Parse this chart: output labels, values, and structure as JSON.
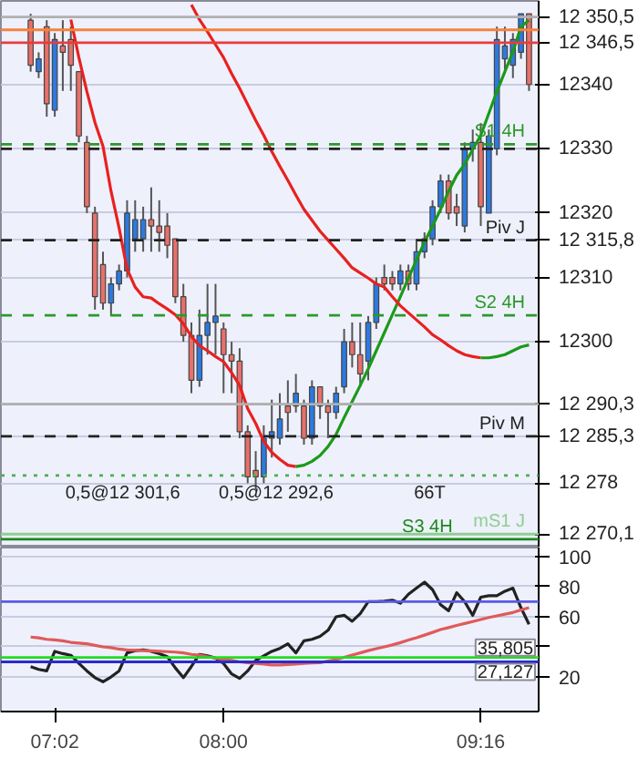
{
  "chart_data": [
    {
      "type": "candlestick",
      "categories": [
        null,
        null,
        null,
        null,
        null,
        null,
        null,
        null,
        null,
        null,
        null,
        null,
        null,
        null,
        null,
        null,
        null,
        null,
        null,
        null,
        null,
        null,
        null,
        null,
        null,
        null,
        null,
        null,
        null,
        null,
        null,
        null,
        null,
        null,
        null,
        null,
        null,
        null,
        null,
        null,
        null,
        null,
        null,
        null,
        null,
        null,
        null,
        null,
        null,
        null,
        null,
        null,
        null,
        null,
        null,
        null,
        null,
        null,
        null,
        null,
        null,
        null,
        null
      ],
      "ohlc": [
        [
          12350,
          12351,
          12342,
          12343
        ],
        [
          12342,
          12345,
          12341,
          12344
        ],
        [
          12349,
          12350,
          12335,
          12337
        ],
        [
          12336,
          12348,
          12335,
          12347
        ],
        [
          12346,
          12350,
          12339,
          12345
        ],
        [
          12347,
          12349,
          12339,
          12343
        ],
        [
          12342,
          12342,
          12331,
          12332
        ],
        [
          12331,
          12332,
          12320,
          12321
        ],
        [
          12320,
          12321,
          12305,
          12307
        ],
        [
          12312,
          12314,
          12305,
          12306
        ],
        [
          12306,
          12310,
          12304,
          12309
        ],
        [
          12309,
          12312,
          12308,
          12311
        ],
        [
          12311,
          12322,
          12310,
          12320
        ],
        [
          12316,
          12322,
          12314,
          12319
        ],
        [
          12316,
          12321,
          12314,
          12319
        ],
        [
          12319,
          12324,
          12314,
          12318
        ],
        [
          12318,
          12322,
          12314,
          12317
        ],
        [
          12318,
          12320,
          12313,
          12315
        ],
        [
          12316,
          12316,
          12306,
          12307
        ],
        [
          12307,
          12309,
          12300,
          12301
        ],
        [
          12301,
          12303,
          12292,
          12294
        ],
        [
          12294,
          12305,
          12293,
          12301
        ],
        [
          12301,
          12309,
          12298,
          12303
        ],
        [
          12303,
          12309,
          12298,
          12304
        ],
        [
          12302,
          12303,
          12292,
          12298
        ],
        [
          12298,
          12300,
          12292,
          12297
        ],
        [
          12297,
          12299,
          12285,
          12286
        ],
        [
          12286,
          12287,
          12278,
          12279
        ],
        [
          12280,
          12283,
          12277,
          12279
        ],
        [
          12279,
          12287,
          12278,
          12285
        ],
        [
          12285,
          12291,
          12282,
          12286
        ],
        [
          12285,
          12292,
          12284,
          12288
        ],
        [
          12290,
          12294,
          12286,
          12289
        ],
        [
          12290,
          12295,
          12289,
          12292
        ],
        [
          12290,
          12291,
          12284,
          12285
        ],
        [
          12285,
          12294,
          12284,
          12293
        ],
        [
          12293,
          12293,
          12288,
          12290
        ],
        [
          12290,
          12291,
          12285,
          12289
        ],
        [
          12289,
          12293,
          12288,
          12292
        ],
        [
          12293,
          12302,
          12292,
          12300
        ],
        [
          12300,
          12303,
          12296,
          12298
        ],
        [
          12298,
          12303,
          12293,
          12295
        ],
        [
          12297,
          12304,
          12294,
          12303
        ],
        [
          12303,
          12310,
          12302,
          12309
        ],
        [
          12310,
          12312,
          12308,
          12309
        ],
        [
          12310,
          12311,
          12308,
          12309
        ],
        [
          12309,
          12312,
          12308,
          12311
        ],
        [
          12311,
          12312,
          12308,
          12309
        ],
        [
          12309,
          12316,
          12308,
          12314
        ],
        [
          12314,
          12317,
          12313,
          12316
        ],
        [
          12316,
          12322,
          12315,
          12321
        ],
        [
          12321,
          12326,
          12320,
          12325
        ],
        [
          12325,
          12326,
          12319,
          12320
        ],
        [
          12321,
          12323,
          12318,
          12320
        ],
        [
          12318,
          12331,
          12317,
          12330
        ],
        [
          12330,
          12333,
          12328,
          12331
        ],
        [
          12331,
          12334,
          12318,
          12321
        ],
        [
          12320,
          12333,
          12320,
          12332
        ],
        [
          12330,
          12349,
          12329,
          12347
        ],
        [
          12344,
          12349,
          12342,
          12346
        ],
        [
          12343,
          12348,
          12341,
          12347
        ],
        [
          12345,
          12351,
          12344,
          12351
        ],
        [
          12351,
          12351,
          12339,
          12340
        ]
      ],
      "colors": [
        "#e8706a",
        "#2a7ae2",
        "#e8706a",
        "#2a7ae2",
        "#e8706a",
        "#e8706a",
        "#e8706a",
        "#e8706a",
        "#e8706a",
        "#e8706a",
        "#2a7ae2",
        "#2a7ae2",
        "#2a7ae2",
        "#2a7ae2",
        "#2a7ae2",
        "#e8706a",
        "#e8706a",
        "#e8706a",
        "#e8706a",
        "#e8706a",
        "#e8706a",
        "#2a7ae2",
        "#2a7ae2",
        "#2a7ae2",
        "#e8706a",
        "#e8706a",
        "#e8706a",
        "#e8706a",
        "#e8706a",
        "#2a7ae2",
        "#2a7ae2",
        "#2a7ae2",
        "#e8706a",
        "#2a7ae2",
        "#e8706a",
        "#2a7ae2",
        "#e8706a",
        "#e8706a",
        "#2a7ae2",
        "#2a7ae2",
        "#e8706a",
        "#e8706a",
        "#2a7ae2",
        "#2a7ae2",
        "#e8706a",
        "#e8706a",
        "#2a7ae2",
        "#e8706a",
        "#2a7ae2",
        "#2a7ae2",
        "#2a7ae2",
        "#2a7ae2",
        "#e8706a",
        "#e8706a",
        "#2a7ae2",
        "#2a7ae2",
        "#e8706a",
        "#2a7ae2",
        "#2a7ae2",
        "#2a7ae2",
        "#2a7ae2",
        "#2a7ae2",
        "#e8706a"
      ],
      "series": [
        {
          "type": "line",
          "color": "#e8211f",
          "values": [
            null,
            null,
            null,
            null,
            null,
            12350.1,
            12344.2,
            12338.9,
            12334.1,
            12330.4,
            12323.4,
            12317.7,
            12311.3,
            12308.5,
            12307,
            12306.8,
            12305.9,
            12305.1,
            12304.2,
            12302.8,
            12300.8,
            12299.4,
            12298.6,
            12297.7,
            12296.9,
            12295.2,
            12293.2,
            12289.6,
            12287.3,
            12284.5,
            12282.8,
            12281.7,
            12280.8,
            12280.6,
            null,
            null,
            null,
            null,
            null,
            null,
            null,
            null,
            null,
            null,
            null,
            null,
            null,
            null,
            null,
            null,
            null,
            null,
            null,
            null,
            null,
            null,
            null,
            null,
            null,
            null,
            null,
            null,
            null
          ]
        },
        {
          "type": "line",
          "color": "#1a9a1a",
          "values": [
            null,
            null,
            null,
            null,
            null,
            null,
            null,
            null,
            null,
            null,
            null,
            null,
            null,
            null,
            null,
            null,
            null,
            null,
            null,
            null,
            null,
            null,
            null,
            null,
            null,
            null,
            null,
            null,
            null,
            null,
            null,
            null,
            null,
            12280.6,
            12280.8,
            12281.4,
            12282.3,
            12283.7,
            12285.6,
            12288.2,
            12290.7,
            12293.2,
            12295.8,
            12298.6,
            12301.4,
            12304.2,
            12307,
            12309.9,
            12312.7,
            12315.5,
            12318,
            12320.6,
            12323.4,
            12325.9,
            12327.6,
            12329.9,
            12332.1,
            12335.5,
            12338.9,
            12342,
            12345.1,
            12349,
            12350
          ]
        },
        {
          "type": "line",
          "color": "#e8211f",
          "values": [
            null,
            null,
            null,
            null,
            null,
            null,
            null,
            null,
            null,
            null,
            null,
            null,
            null,
            null,
            null,
            null,
            null,
            null,
            null,
            null,
            12352.4,
            12350.1,
            12348.2,
            12346.2,
            12344.2,
            12341.7,
            12339.4,
            12336.9,
            12334.4,
            12332.1,
            12329.6,
            12327.3,
            12325.1,
            12322.8,
            12320.6,
            12318.9,
            12317.2,
            12315.8,
            12314.4,
            12313,
            12311.5,
            12310.7,
            12309.9,
            12309,
            12308.5,
            12307,
            12305.6,
            12304.5,
            12303.4,
            12302.3,
            12301.1,
            12300.3,
            12299.4,
            12298.6,
            12298,
            12297.7,
            12297.5,
            null,
            null,
            null,
            null,
            null,
            null
          ]
        },
        {
          "type": "line",
          "color": "#1a9a1a",
          "values": [
            null,
            null,
            null,
            null,
            null,
            null,
            null,
            null,
            null,
            null,
            null,
            null,
            null,
            null,
            null,
            null,
            null,
            null,
            null,
            null,
            null,
            null,
            null,
            null,
            null,
            null,
            null,
            null,
            null,
            null,
            null,
            null,
            null,
            null,
            null,
            null,
            null,
            null,
            null,
            null,
            null,
            null,
            null,
            null,
            null,
            null,
            null,
            null,
            null,
            null,
            null,
            null,
            null,
            null,
            null,
            null,
            12297.5,
            12297.5,
            12297.7,
            12298,
            12298.6,
            12299.2,
            12299.5
          ]
        }
      ],
      "ylim": [
        12268,
        12353
      ],
      "yticks": [
        {
          "value": 12270.1,
          "label": "12 270,1"
        },
        {
          "value": 12278,
          "label": "12 278"
        },
        {
          "value": 12285.3,
          "label": "12 285,3"
        },
        {
          "value": 12290.3,
          "label": "12 290,3"
        },
        12300,
        12310,
        {
          "value": 12315.8,
          "label": "12 315,8"
        },
        12320,
        12330,
        12340,
        {
          "value": 12346.5,
          "label": "12 346,5"
        },
        {
          "value": 12350.5,
          "label": "12 350,5"
        }
      ],
      "grid": "y",
      "tick_labels": "y",
      "ref_lines": [
        {
          "axis": "y",
          "value": 12350.5,
          "label": null,
          "color": "#b0b0b0",
          "line_style": "solid"
        },
        {
          "axis": "y",
          "value": 12348.5,
          "label": null,
          "color": "#f5823c",
          "line_style": "solid"
        },
        {
          "axis": "y",
          "value": 12346.5,
          "label": null,
          "color": "#e83c3c",
          "line_style": "solid"
        },
        {
          "axis": "y",
          "value": 12330.7,
          "label": "S1 4H",
          "color": "#2a9a2a",
          "line_style": "dashed"
        },
        {
          "axis": "y",
          "value": 12330,
          "label": null,
          "color": "#222222",
          "line_style": "dashed"
        },
        {
          "axis": "y",
          "value": 12315.8,
          "label": "Piv J",
          "color": "#222222",
          "line_style": "dashed"
        },
        {
          "axis": "y",
          "value": 12304.1,
          "label": "S2 4H",
          "color": "#2a9a2a",
          "line_style": "dashed"
        },
        {
          "axis": "y",
          "value": 12290.3,
          "label": null,
          "color": "#b0b0b0",
          "line_style": "solid"
        },
        {
          "axis": "y",
          "value": 12285.3,
          "label": "Piv M",
          "color": "#222222",
          "line_style": "dashed"
        },
        {
          "axis": "y",
          "value": 12279.2,
          "label": null,
          "color": "#4caf50",
          "line_style": "dotted"
        },
        {
          "axis": "y",
          "value": 12270.1,
          "label": "mS1 J",
          "color": "#8fcf8f",
          "line_style": "solid"
        },
        {
          "axis": "y",
          "value": 12269.3,
          "label": "S3 4H",
          "color": "#1a8a1a",
          "line_style": "solid"
        }
      ],
      "annotations": [
        "0,5@12 301,6",
        "0,5@12 292,6",
        "66T"
      ]
    },
    {
      "type": "line",
      "categories": [
        null,
        null,
        null,
        "07:02",
        null,
        null,
        null,
        null,
        null,
        null,
        null,
        null,
        null,
        null,
        null,
        null,
        null,
        null,
        null,
        null,
        null,
        null,
        null,
        null,
        "08:00",
        null,
        null,
        null,
        null,
        null,
        null,
        null,
        null,
        null,
        null,
        null,
        null,
        null,
        null,
        null,
        null,
        null,
        null,
        null,
        null,
        null,
        null,
        null,
        null,
        null,
        null,
        null,
        null,
        null,
        null,
        null,
        "09:16",
        null,
        null,
        null,
        null,
        null,
        null
      ],
      "series": [
        {
          "color": "#222222",
          "values": [
            26.8,
            25,
            24,
            37,
            35.5,
            34.4,
            29,
            24,
            19.5,
            16.8,
            20,
            24,
            36,
            37.5,
            38,
            37,
            35.5,
            33.5,
            26,
            19.5,
            27,
            35,
            34,
            32.5,
            29,
            22,
            19,
            24,
            31,
            34,
            37,
            39,
            42,
            36,
            44,
            45,
            47,
            51,
            60,
            61,
            57,
            62,
            70,
            70,
            70.3,
            71,
            69,
            75,
            79,
            83,
            78,
            68,
            64,
            76,
            70,
            61,
            73,
            74,
            74,
            77,
            79,
            66,
            55
          ]
        },
        {
          "color": "#e05a5a",
          "values": [
            46.5,
            46,
            45,
            44.6,
            44,
            43,
            42.5,
            42,
            41,
            40,
            39.5,
            38.5,
            38,
            37.8,
            37.5,
            37.3,
            37,
            36.8,
            36.5,
            36,
            35,
            34.5,
            33.5,
            32.5,
            31.5,
            31,
            30,
            29.5,
            29,
            28.5,
            28,
            28,
            28.3,
            28.6,
            29,
            29.3,
            29.5,
            30.5,
            31.5,
            33,
            34.5,
            36,
            37.5,
            38.8,
            40,
            41.3,
            42.8,
            44.5,
            46,
            47.8,
            49.6,
            51.5,
            52.8,
            54.2,
            55.5,
            56.8,
            58.2,
            59.5,
            60.6,
            61.7,
            62.8,
            64.5,
            66
          ]
        }
      ],
      "ylim": [
        -3,
        106
      ],
      "yticks": [
        20,
        {
          "value": 40,
          "label": null
        },
        60,
        80,
        100
      ],
      "grid": "y",
      "ref_lines": [
        {
          "axis": "y",
          "value": 70,
          "label": null,
          "color": "#5a5ae6",
          "line_style": "solid"
        },
        {
          "axis": "y",
          "value": 30,
          "label": null,
          "color": "#2a2ad0",
          "line_style": "solid"
        },
        {
          "axis": "y",
          "value": 33,
          "label": null,
          "color": "#22dd22",
          "line_style": "solid"
        }
      ],
      "annotations": [
        {
          "text": "35,805",
          "y": 35.805
        },
        {
          "text": "27,127",
          "y": 27.127
        }
      ]
    }
  ]
}
